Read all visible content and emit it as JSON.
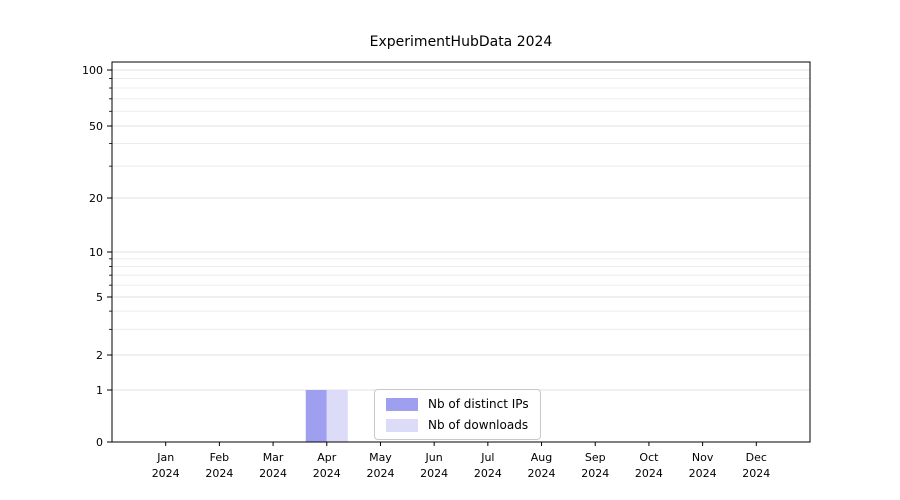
{
  "chart_data": {
    "type": "bar",
    "title": "ExperimentHubData 2024",
    "yscale": "log",
    "ylim": [
      0,
      110
    ],
    "yticks": [
      0,
      1,
      2,
      5,
      10,
      20,
      50,
      100
    ],
    "y_minor_gridlines": [
      3,
      4,
      6,
      7,
      8,
      9,
      30,
      40,
      60,
      70,
      80,
      90
    ],
    "categories": [
      "Jan",
      "Feb",
      "Mar",
      "Apr",
      "May",
      "Jun",
      "Jul",
      "Aug",
      "Sep",
      "Oct",
      "Nov",
      "Dec"
    ],
    "x_year_label": "2024",
    "series": [
      {
        "name": "Nb of distinct IPs",
        "color": "#9f9fef",
        "values": [
          0,
          0,
          0,
          1,
          0,
          0,
          0,
          0,
          0,
          0,
          0,
          0
        ]
      },
      {
        "name": "Nb of downloads",
        "color": "#dcdcf8",
        "values": [
          0,
          0,
          0,
          1,
          0,
          0,
          0,
          0,
          0,
          0,
          0,
          0
        ]
      }
    ],
    "legend": {
      "position": "bottom-center",
      "entries": [
        "Nb of distinct IPs",
        "Nb of downloads"
      ]
    },
    "grid": "horizontal"
  }
}
